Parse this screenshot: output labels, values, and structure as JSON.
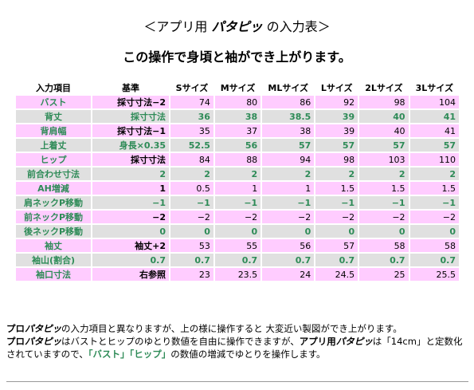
{
  "header": {
    "title": {
      "before": "＜アプリ用 ",
      "brand": "パタピッ",
      "after": " の入力表＞"
    },
    "subtitle": "この操作で身頃と袖ができ上がります。"
  },
  "table": {
    "columns": [
      "入力項目",
      "基準",
      "Sサイズ",
      "Mサイズ",
      "MLサイズ",
      "Lサイズ",
      "2Lサイズ",
      "3Lサイズ"
    ],
    "rows": [
      [
        "バスト",
        "採寸寸法−2",
        "74",
        "80",
        "86",
        "92",
        "98",
        "104"
      ],
      [
        "背丈",
        "採寸寸法",
        "36",
        "38",
        "38.5",
        "39",
        "40",
        "41"
      ],
      [
        "背肩幅",
        "採寸寸法−1",
        "35",
        "37",
        "38",
        "39",
        "40",
        "41"
      ],
      [
        "上着丈",
        "身長×0.35",
        "52.5",
        "56",
        "57",
        "57",
        "57",
        "57"
      ],
      [
        "ヒップ",
        "採寸寸法",
        "84",
        "88",
        "94",
        "98",
        "103",
        "110"
      ],
      [
        "前合わせ寸法",
        "2",
        "2",
        "2",
        "2",
        "2",
        "2",
        "2"
      ],
      [
        "AH増減",
        "1",
        "0.5",
        "1",
        "1",
        "1.5",
        "1.5",
        "1.5"
      ],
      [
        "肩ネックP移動",
        "−1",
        "−1",
        "−1",
        "−1",
        "−1",
        "−1",
        "−1"
      ],
      [
        "前ネックP移動",
        "−2",
        "−2",
        "−2",
        "−2",
        "−2",
        "−2",
        "−2"
      ],
      [
        "後ネックP移動",
        "0",
        "0",
        "0",
        "0",
        "0",
        "0",
        "0"
      ],
      [
        "袖丈",
        "袖丈+2",
        "53",
        "55",
        "56",
        "57",
        "58",
        "58"
      ],
      [
        "袖山(割合)",
        "0.7",
        "0.7",
        "0.7",
        "0.7",
        "0.7",
        "0.7",
        "0.7"
      ],
      [
        "袖口寸法",
        "右参照",
        "23",
        "23.5",
        "24",
        "24.5",
        "25",
        "25.5"
      ]
    ]
  },
  "notes": [
    [
      {
        "t": "プロ",
        "s": "b"
      },
      {
        "t": "パタピッ",
        "s": "bi"
      },
      {
        "t": "の入力項目と異なりますが、上の様に操作すると 大変近い製図ができ上がります。",
        "s": ""
      }
    ],
    [
      {
        "t": "プロ",
        "s": "b"
      },
      {
        "t": "パタピッ",
        "s": "bi"
      },
      {
        "t": "はバストとヒップのゆとり数値を自由に操作できますが、",
        "s": ""
      },
      {
        "t": "アプリ用",
        "s": "b"
      },
      {
        "t": "パタピッ",
        "s": "bi"
      },
      {
        "t": "は「14cm」と定数化",
        "s": ""
      }
    ],
    [
      {
        "t": "されていますので、",
        "s": ""
      },
      {
        "t": "「バスト」「ヒップ」",
        "s": "g"
      },
      {
        "t": "の数値の増減でゆとりを操作します。",
        "s": ""
      }
    ]
  ]
}
